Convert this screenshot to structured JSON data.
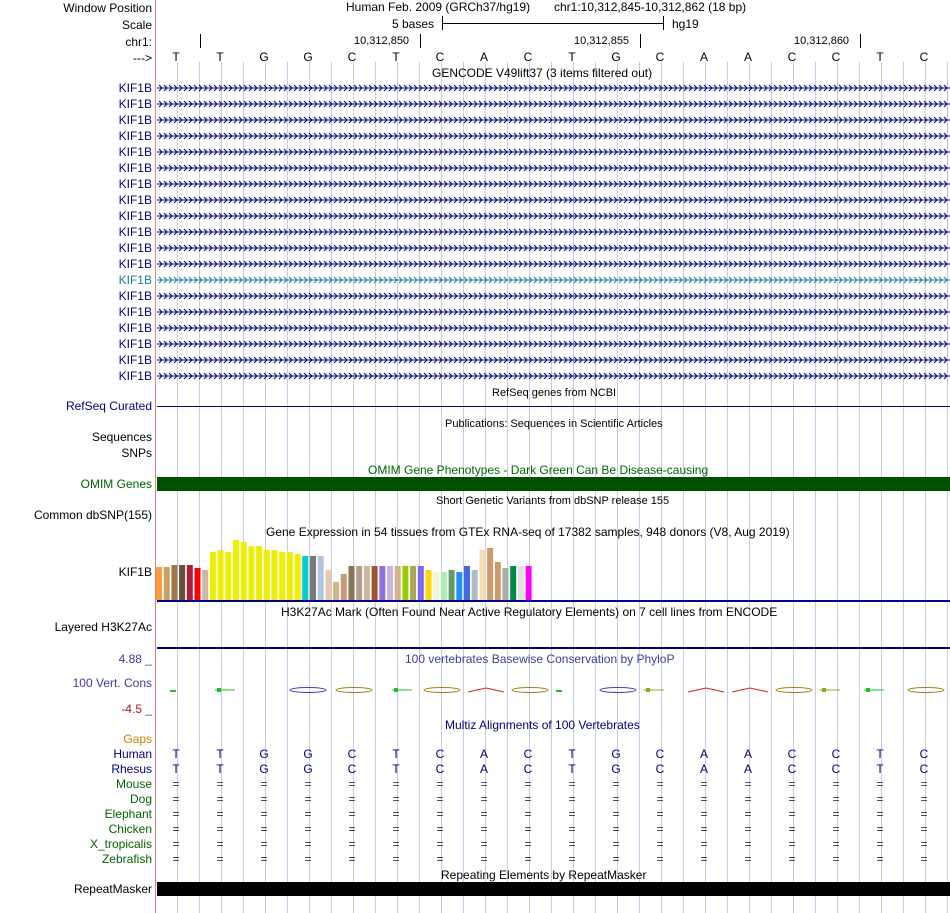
{
  "header": {
    "window_position_label": "Window Position",
    "scale_label": "Scale",
    "chrom_label": "chr1:",
    "arrow_label": "--->",
    "assembly": "Human Feb. 2009 (GRCh37/hg19)",
    "position": "chr1:10,312,845-10,312,862 (18 bp)",
    "scale_text": "5 bases",
    "db": "hg19",
    "ticks": [
      "10,312,850",
      "10,312,855",
      "10,312,860"
    ]
  },
  "bases": [
    "T",
    "T",
    "G",
    "G",
    "C",
    "T",
    "C",
    "A",
    "C",
    "T",
    "G",
    "C",
    "A",
    "A",
    "C",
    "C",
    "T",
    "C"
  ],
  "gencode": {
    "title": "GENCODE V49lift37 (3 items filtered out)",
    "genes": [
      "KIF1B",
      "KIF1B",
      "KIF1B",
      "KIF1B",
      "KIF1B",
      "KIF1B",
      "KIF1B",
      "KIF1B",
      "KIF1B",
      "KIF1B",
      "KIF1B",
      "KIF1B",
      "KIF1B",
      "KIF1B",
      "KIF1B",
      "KIF1B",
      "KIF1B",
      "KIF1B",
      "KIF1B"
    ],
    "highlight_index": 12
  },
  "refseq": {
    "title": "RefSeq genes from NCBI",
    "label": "RefSeq Curated"
  },
  "publications": {
    "title": "Publications: Sequences in Scientific Articles",
    "label1": "Sequences",
    "label2": "SNPs"
  },
  "omim": {
    "title": "OMIM Gene Phenotypes - Dark Green Can Be Disease-causing",
    "label": "OMIM Genes"
  },
  "dbsnp": {
    "title": "Short Genetic Variants from dbSNP release 155",
    "label": "Common dbSNP(155)"
  },
  "gtex": {
    "title": "Gene Expression in 54 tissues from GTEx RNA-seq of 17382 samples, 948 donors (V8, Aug 2019)",
    "label": "KIF1B"
  },
  "h3k27ac": {
    "title": "H3K27Ac Mark (Often Found Near Active Regulatory Elements) on 7 cell lines from ENCODE",
    "label": "Layered H3K27Ac"
  },
  "phylop": {
    "title": "100 vertebrates Basewise Conservation by PhyloP",
    "label": "100 Vert. Cons",
    "max": "4.88 _",
    "min": "-4.5 _"
  },
  "multiz": {
    "title": "Multiz Alignments of 100 Vertebrates",
    "gaps_label": "Gaps",
    "species": [
      "Human",
      "Rhesus",
      "Mouse",
      "Dog",
      "Elephant",
      "Chicken",
      "X_tropicalis",
      "Zebrafish"
    ],
    "rows": [
      [
        "T",
        "T",
        "G",
        "G",
        "C",
        "T",
        "C",
        "A",
        "C",
        "T",
        "G",
        "C",
        "A",
        "A",
        "C",
        "C",
        "T",
        "C"
      ],
      [
        "T",
        "T",
        "G",
        "G",
        "C",
        "T",
        "C",
        "A",
        "C",
        "T",
        "G",
        "C",
        "A",
        "A",
        "C",
        "C",
        "T",
        "C"
      ],
      [
        "=",
        "=",
        "=",
        "=",
        "=",
        "=",
        "=",
        "=",
        "=",
        "=",
        "=",
        "=",
        "=",
        "=",
        "=",
        "=",
        "=",
        "="
      ],
      [
        "=",
        "=",
        "=",
        "=",
        "=",
        "=",
        "=",
        "=",
        "=",
        "=",
        "=",
        "=",
        "=",
        "=",
        "=",
        "=",
        "=",
        "="
      ],
      [
        "=",
        "=",
        "=",
        "=",
        "=",
        "=",
        "=",
        "=",
        "=",
        "=",
        "=",
        "=",
        "=",
        "=",
        "=",
        "=",
        "=",
        "="
      ],
      [
        "=",
        "=",
        "=",
        "=",
        "=",
        "=",
        "=",
        "=",
        "=",
        "=",
        "=",
        "=",
        "=",
        "=",
        "=",
        "=",
        "=",
        "="
      ],
      [
        "=",
        "=",
        "=",
        "=",
        "=",
        "=",
        "=",
        "=",
        "=",
        "=",
        "=",
        "=",
        "=",
        "=",
        "=",
        "=",
        "=",
        "="
      ],
      [
        "=",
        "=",
        "=",
        "=",
        "=",
        "=",
        "=",
        "=",
        "=",
        "=",
        "=",
        "=",
        "=",
        "=",
        "=",
        "=",
        "=",
        "="
      ]
    ]
  },
  "repeatmasker": {
    "title": "Repeating Elements by RepeatMasker",
    "label": "RepeatMasker"
  },
  "colors": {
    "navy": "#000080",
    "gene_highlight": "#1c7ca0",
    "omim_green": "#005000",
    "omim_text": "#006400",
    "phylop_blue": "#3c3ca0",
    "phylop_min": "#a02020",
    "gaps_orange": "#d08000",
    "species_green": "#006400",
    "guide": "#c8c8e8",
    "redline": "#e08080"
  }
}
